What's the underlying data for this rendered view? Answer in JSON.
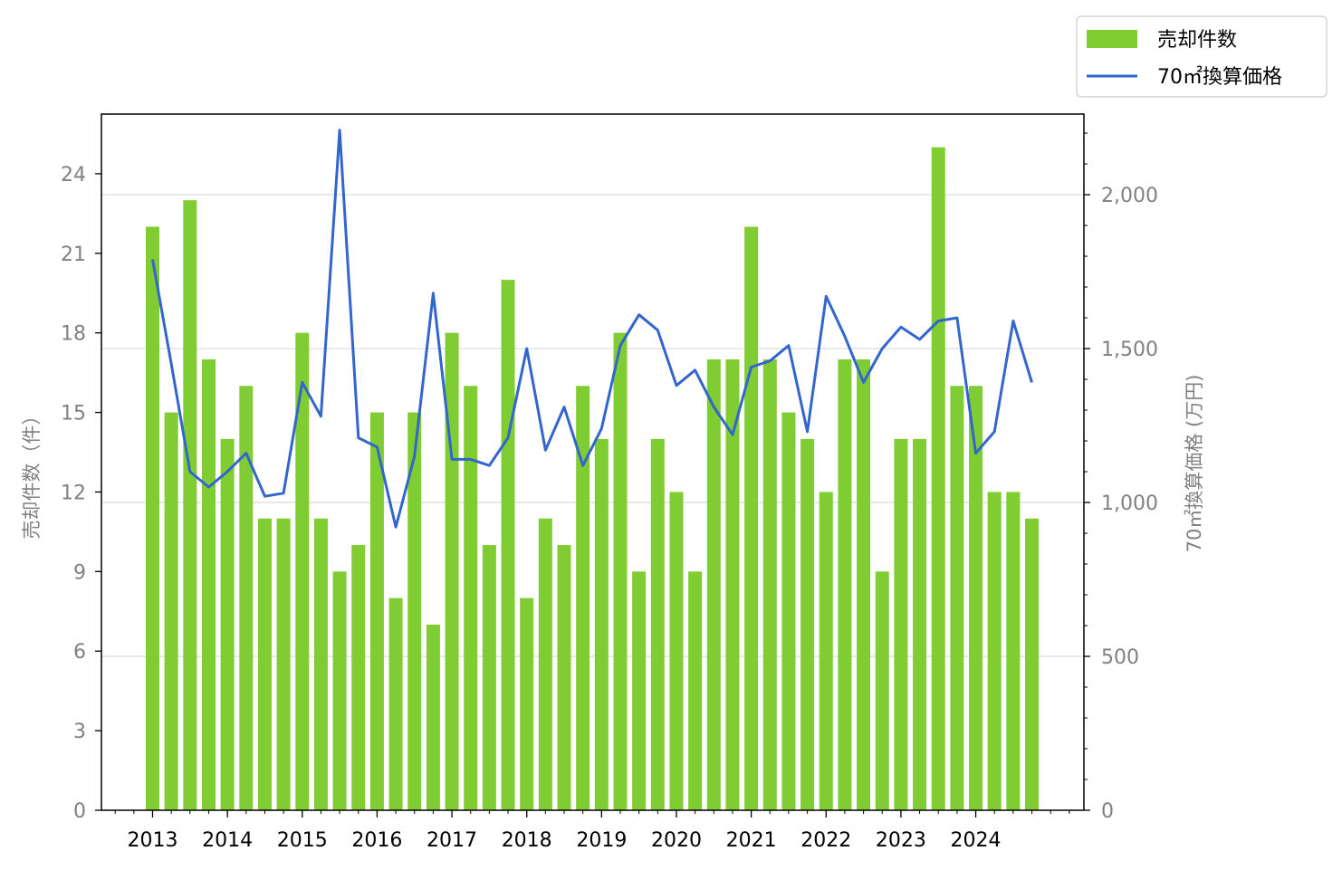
{
  "chart_data": {
    "type": "bar+line",
    "title": "",
    "ylabel_left": "売却件数（件）",
    "ylabel_right": "70㎡換算価格 (万円)",
    "ylim_left": [
      0,
      26.25
    ],
    "ylim_right": [
      0,
      2262
    ],
    "yticks_left": [
      "0",
      "3",
      "6",
      "9",
      "12",
      "15",
      "18",
      "21",
      "24"
    ],
    "yticks_right": [
      "0",
      "500",
      "1,000",
      "1,500",
      "2,000"
    ],
    "x_year_labels": [
      "2013",
      "2014",
      "2015",
      "2016",
      "2017",
      "2018",
      "2019",
      "2020",
      "2021",
      "2022",
      "2023",
      "2024"
    ],
    "grid": "horizontal (right axis)",
    "legend_position": "top-right, outside",
    "series": [
      {
        "name": "売却件数",
        "type": "bar",
        "axis": "left",
        "color": "#7fcc33",
        "values": [
          22,
          15,
          23,
          17,
          14,
          16,
          11,
          11,
          18,
          11,
          9,
          10,
          15,
          8,
          15,
          7,
          18,
          16,
          10,
          20,
          8,
          11,
          10,
          16,
          14,
          18,
          9,
          14,
          12,
          9,
          17,
          17,
          22,
          17,
          15,
          14,
          12,
          17,
          17,
          9,
          14,
          14,
          25,
          16,
          16,
          12,
          12,
          11
        ]
      },
      {
        "name": "70㎡換算価格",
        "type": "line",
        "axis": "right",
        "color": "#3366cc",
        "values": [
          1790,
          1450,
          1100,
          1050,
          1100,
          1160,
          1020,
          1030,
          1390,
          1280,
          2210,
          1210,
          1180,
          920,
          1150,
          1680,
          1140,
          1140,
          1120,
          1210,
          1500,
          1170,
          1310,
          1120,
          1240,
          1510,
          1610,
          1560,
          1380,
          1430,
          1310,
          1220,
          1440,
          1460,
          1510,
          1230,
          1670,
          1540,
          1390,
          1500,
          1570,
          1530,
          1590,
          1600,
          1160,
          1230,
          1590,
          1390
        ]
      }
    ]
  }
}
